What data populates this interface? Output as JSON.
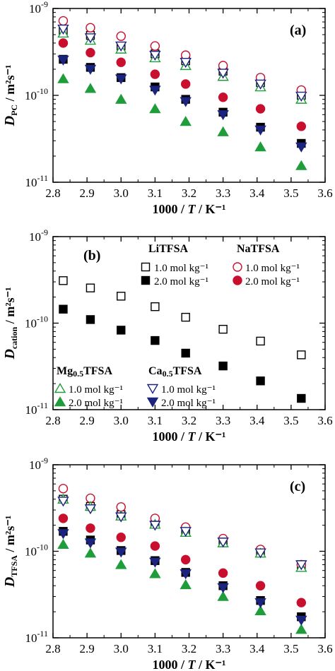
{
  "chart_data": [
    {
      "type": "scatter",
      "panel_label": "(a)",
      "ylabel_main": "D",
      "ylabel_sub": "PC",
      "ylabel_unit": " / m²s⁻¹",
      "xlabel": "1000 / T / K⁻¹",
      "xlim": [
        2.8,
        3.6
      ],
      "ylim": [
        1e-11,
        1e-09
      ],
      "yscale": "log",
      "xticks": [
        "2.8",
        "2.9",
        "3.0",
        "3.1",
        "3.2",
        "3.3",
        "3.4",
        "3.5",
        "3.6"
      ],
      "yticks": [
        {
          "base": "10",
          "exp": "-9",
          "value": 1e-09
        },
        {
          "base": "10",
          "exp": "-10",
          "value": 1e-10
        },
        {
          "base": "10",
          "exp": "-11",
          "value": 1e-11
        }
      ],
      "series": [
        {
          "key": "Li1",
          "marker": "square",
          "filled": false,
          "color": "#000000",
          "x": [
            2.83,
            2.91,
            3.0,
            3.1,
            3.19,
            3.3,
            3.41,
            3.53
          ],
          "y": [
            5.6e-10,
            4.9e-10,
            3.7e-10,
            3e-10,
            2.5e-10,
            1.9e-10,
            1.4e-10,
            1e-10
          ]
        },
        {
          "key": "Li2",
          "marker": "square",
          "filled": true,
          "color": "#000000",
          "x": [
            2.83,
            2.91,
            3.0,
            3.1,
            3.19,
            3.3,
            3.41,
            3.53
          ],
          "y": [
            2.6e-10,
            2.1e-10,
            1.6e-10,
            1.25e-10,
            9e-11,
            6.4e-11,
            4.3e-11,
            2.8e-11
          ]
        },
        {
          "key": "Na1",
          "marker": "circle",
          "filled": false,
          "color": "#c8102e",
          "x": [
            2.83,
            2.91,
            3.0,
            3.1,
            3.19,
            3.3,
            3.41,
            3.53
          ],
          "y": [
            7.2e-10,
            6e-10,
            4.8e-10,
            3.7e-10,
            2.9e-10,
            2.2e-10,
            1.6e-10,
            1.15e-10
          ]
        },
        {
          "key": "Na2",
          "marker": "circle",
          "filled": true,
          "color": "#c8102e",
          "x": [
            2.83,
            2.91,
            3.0,
            3.1,
            3.19,
            3.3,
            3.41,
            3.53
          ],
          "y": [
            4e-10,
            3.1e-10,
            2.4e-10,
            1.75e-10,
            1.35e-10,
            9.5e-11,
            7e-11,
            4.4e-11
          ]
        },
        {
          "key": "Mg1",
          "marker": "triangle-up",
          "filled": false,
          "color": "#1f9d3a",
          "x": [
            2.83,
            2.91,
            3.0,
            3.1,
            3.19,
            3.3,
            3.41,
            3.53
          ],
          "y": [
            5.2e-10,
            4.3e-10,
            3.4e-10,
            2.7e-10,
            2.2e-10,
            1.65e-10,
            1.25e-10,
            9e-11
          ]
        },
        {
          "key": "Mg2",
          "marker": "triangle-up",
          "filled": true,
          "color": "#1f9d3a",
          "x": [
            2.83,
            2.91,
            3.0,
            3.1,
            3.19,
            3.3,
            3.41,
            3.53
          ],
          "y": [
            1.55e-10,
            1.2e-10,
            9e-11,
            7e-11,
            5e-11,
            3.8e-11,
            2.55e-11,
            1.55e-11
          ]
        },
        {
          "key": "Ca1",
          "marker": "triangle-down",
          "filled": false,
          "color": "#1a237e",
          "x": [
            2.83,
            2.91,
            3.0,
            3.1,
            3.19,
            3.3,
            3.41,
            3.53
          ],
          "y": [
            5.8e-10,
            4.6e-10,
            3.7e-10,
            2.9e-10,
            2.4e-10,
            1.8e-10,
            1.35e-10,
            9.8e-11
          ]
        },
        {
          "key": "Ca2",
          "marker": "triangle-down",
          "filled": true,
          "color": "#1a237e",
          "x": [
            2.83,
            2.91,
            3.0,
            3.1,
            3.19,
            3.3,
            3.41,
            3.53
          ],
          "y": [
            2.55e-10,
            2e-10,
            1.55e-10,
            1.15e-10,
            8.5e-11,
            6e-11,
            4e-11,
            2.55e-11
          ]
        }
      ]
    },
    {
      "type": "scatter",
      "panel_label": "(b)",
      "ylabel_main": "D",
      "ylabel_sub": "cation",
      "ylabel_unit": " / m²s⁻¹",
      "xlabel": "1000 / T / K⁻¹",
      "xlim": [
        2.8,
        3.6
      ],
      "ylim": [
        1e-11,
        1e-09
      ],
      "yscale": "log",
      "xticks": [
        "2.8",
        "2.9",
        "3.0",
        "3.1",
        "3.2",
        "3.3",
        "3.4",
        "3.5",
        "3.6"
      ],
      "yticks": [
        {
          "base": "10",
          "exp": "-9",
          "value": 1e-09
        },
        {
          "base": "10",
          "exp": "-10",
          "value": 1e-10
        },
        {
          "base": "10",
          "exp": "-11",
          "value": 1e-11
        }
      ],
      "series": [
        {
          "key": "Li1",
          "marker": "square",
          "filled": false,
          "color": "#000000",
          "x": [
            2.83,
            2.91,
            3.0,
            3.1,
            3.19,
            3.3,
            3.41,
            3.53
          ],
          "y": [
            3.1e-10,
            2.55e-10,
            2.05e-10,
            1.55e-10,
            1.17e-10,
            8.5e-11,
            6.2e-11,
            4.3e-11
          ]
        },
        {
          "key": "Li2",
          "marker": "square",
          "filled": true,
          "color": "#000000",
          "x": [
            2.83,
            2.91,
            3.0,
            3.1,
            3.19,
            3.3,
            3.41,
            3.53
          ],
          "y": [
            1.45e-10,
            1.1e-10,
            8.3e-11,
            6.3e-11,
            4.5e-11,
            3.2e-11,
            2.15e-11,
            1.35e-11
          ]
        }
      ],
      "legend": {
        "li_head": "LiTFSA",
        "na_head": "NaTFSA",
        "mg_head_main": "Mg",
        "mg_head_sub": "0.5",
        "mg_head_tail": "TFSA",
        "ca_head_main": "Ca",
        "ca_head_sub": "0.5",
        "ca_head_tail": "TFSA",
        "label_1": "1.0 mol kg⁻¹",
        "label_2": "2.0 mol kg⁻¹"
      }
    },
    {
      "type": "scatter",
      "panel_label": "(c)",
      "ylabel_main": "D",
      "ylabel_sub": "TFSA",
      "ylabel_unit": " / m²s⁻¹",
      "xlabel": "1000 / T / K⁻¹",
      "xlim": [
        2.8,
        3.6
      ],
      "ylim": [
        1e-11,
        1e-09
      ],
      "yscale": "log",
      "xticks": [
        "2.8",
        "2.9",
        "3.0",
        "3.1",
        "3.2",
        "3.3",
        "3.4",
        "3.5",
        "3.6"
      ],
      "yticks": [
        {
          "base": "10",
          "exp": "-9",
          "value": 1e-09
        },
        {
          "base": "10",
          "exp": "-10",
          "value": 1e-10
        },
        {
          "base": "10",
          "exp": "-11",
          "value": 1e-11
        }
      ],
      "series": [
        {
          "key": "Li1",
          "marker": "square",
          "filled": false,
          "color": "#000000",
          "x": [
            2.83,
            2.91,
            3.0,
            3.1,
            3.19,
            3.3,
            3.41,
            3.53
          ],
          "y": [
            4e-10,
            3.3e-10,
            2.65e-10,
            2.1e-10,
            1.75e-10,
            1.3e-10,
            9.8e-11,
            7e-11
          ]
        },
        {
          "key": "Li2",
          "marker": "square",
          "filled": true,
          "color": "#000000",
          "x": [
            2.83,
            2.91,
            3.0,
            3.1,
            3.19,
            3.3,
            3.41,
            3.53
          ],
          "y": [
            1.7e-10,
            1.35e-10,
            1.02e-10,
            7.8e-11,
            5.7e-11,
            4e-11,
            2.7e-11,
            1.75e-11
          ]
        },
        {
          "key": "Na1",
          "marker": "circle",
          "filled": false,
          "color": "#c8102e",
          "x": [
            2.83,
            2.91,
            3.0,
            3.1,
            3.19,
            3.3,
            3.41,
            3.53
          ],
          "y": [
            5.3e-10,
            4.1e-10,
            3.25e-10,
            2.4e-10,
            1.9e-10,
            1.4e-10,
            1.05e-10,
            7e-11
          ]
        },
        {
          "key": "Na2",
          "marker": "circle",
          "filled": true,
          "color": "#c8102e",
          "x": [
            2.83,
            2.91,
            3.0,
            3.1,
            3.19,
            3.3,
            3.41,
            3.53
          ],
          "y": [
            2.4e-10,
            1.85e-10,
            1.45e-10,
            1.15e-10,
            8e-11,
            5.6e-11,
            4e-11,
            2.55e-11
          ]
        },
        {
          "key": "Mg1",
          "marker": "triangle-up",
          "filled": false,
          "color": "#1f9d3a",
          "x": [
            2.83,
            2.91,
            3.0,
            3.1,
            3.19,
            3.3,
            3.41,
            3.53
          ],
          "y": [
            4e-10,
            3.3e-10,
            2.55e-10,
            2.05e-10,
            1.65e-10,
            1.25e-10,
            9.5e-11,
            6.5e-11
          ]
        },
        {
          "key": "Mg2",
          "marker": "triangle-up",
          "filled": true,
          "color": "#1f9d3a",
          "x": [
            2.83,
            2.91,
            3.0,
            3.1,
            3.19,
            3.3,
            3.41,
            3.53
          ],
          "y": [
            1.2e-10,
            9.5e-11,
            7e-11,
            5.5e-11,
            4.1e-11,
            3e-11,
            2.05e-11,
            1.25e-11
          ]
        },
        {
          "key": "Ca1",
          "marker": "triangle-down",
          "filled": false,
          "color": "#1a237e",
          "x": [
            2.83,
            2.91,
            3.0,
            3.1,
            3.19,
            3.3,
            3.41,
            3.53
          ],
          "y": [
            3.8e-10,
            3.1e-10,
            2.5e-10,
            2e-10,
            1.7e-10,
            1.28e-10,
            9.6e-11,
            7e-11
          ]
        },
        {
          "key": "Ca2",
          "marker": "triangle-down",
          "filled": true,
          "color": "#1a237e",
          "x": [
            2.83,
            2.91,
            3.0,
            3.1,
            3.19,
            3.3,
            3.41,
            3.53
          ],
          "y": [
            1.6e-10,
            1.25e-10,
            9.8e-11,
            7.5e-11,
            5.5e-11,
            3.8e-11,
            2.55e-11,
            1.6e-11
          ]
        }
      ]
    }
  ]
}
